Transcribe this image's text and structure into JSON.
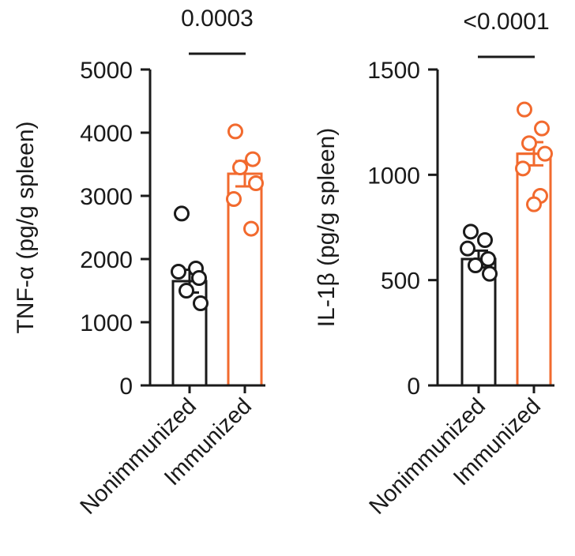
{
  "colors": {
    "nonimmunized": "#1a1a1a",
    "immunized": "#f26a2e",
    "axis": "#1a1a1a"
  },
  "chart_data": [
    {
      "type": "bar",
      "ylabel": "TNF-α (pg/g spleen)",
      "ylim": [
        0,
        5000
      ],
      "yticks": [
        "0",
        "1000",
        "2000",
        "3000",
        "4000",
        "5000"
      ],
      "ytick_values": [
        0,
        1000,
        2000,
        3000,
        4000,
        5000
      ],
      "categories": [
        "Nonimmunized",
        "Immunized"
      ],
      "values": [
        1650,
        3350
      ],
      "sem": [
        180,
        200
      ],
      "points": [
        [
          2720,
          1850,
          1800,
          1700,
          1500,
          1300
        ],
        [
          4020,
          3580,
          3450,
          3200,
          2950,
          2480
        ]
      ],
      "significance": "0.0003",
      "grid": false
    },
    {
      "type": "bar",
      "ylabel": "IL-1β (pg/g spleen)",
      "ylim": [
        0,
        1500
      ],
      "yticks": [
        "0",
        "500",
        "1000",
        "1500"
      ],
      "ytick_values": [
        0,
        500,
        1000,
        1500
      ],
      "categories": [
        "Nonimmunized",
        "Immunized"
      ],
      "values": [
        600,
        1100
      ],
      "sem": [
        40,
        55
      ],
      "points": [
        [
          730,
          690,
          650,
          600,
          570,
          530
        ],
        [
          1310,
          1220,
          1150,
          1100,
          1030,
          900,
          860
        ]
      ],
      "significance": "<0.0001",
      "grid": false
    }
  ]
}
